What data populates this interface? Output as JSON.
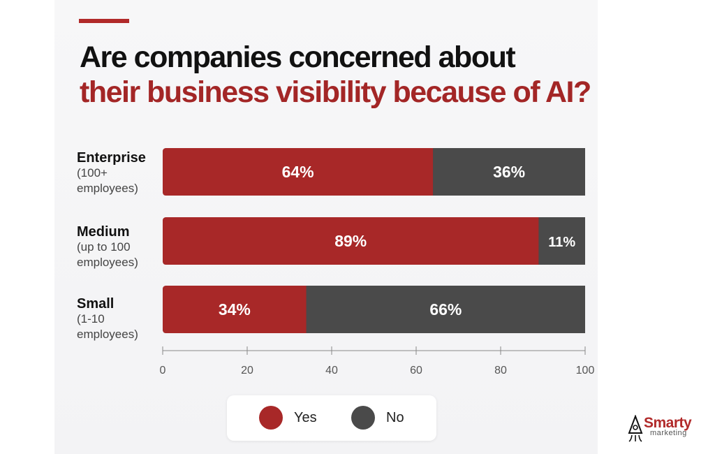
{
  "title": {
    "line1": "Are companies concerned about",
    "line2": "their business visibility because of AI?"
  },
  "colors": {
    "accent": "#b12a2a",
    "yes": "#a82828",
    "no": "#4a4a4a",
    "title_red": "#a32626"
  },
  "categories_info": [
    {
      "name": "Enterprise",
      "sub": "(100+\nemployees)"
    },
    {
      "name": "Medium",
      "sub": "(up to 100\nemployees)"
    },
    {
      "name": "Small",
      "sub": "(1-10\nemployees)"
    }
  ],
  "legend": {
    "yes": "Yes",
    "no": "No"
  },
  "logo": {
    "name": "Smarty",
    "tag": "marketing",
    "icon": "rocket-icon"
  },
  "chart_data": {
    "type": "bar",
    "orientation": "horizontal",
    "stacked": true,
    "categories": [
      "Enterprise",
      "Medium",
      "Small"
    ],
    "series": [
      {
        "name": "Yes",
        "values": [
          64,
          89,
          34
        ],
        "labels": [
          "64%",
          "89%",
          "34%"
        ],
        "color": "#a82828"
      },
      {
        "name": "No",
        "values": [
          36,
          11,
          66
        ],
        "labels": [
          "36%",
          "11%",
          "66%"
        ],
        "color": "#4a4a4a"
      }
    ],
    "xlim": [
      0,
      100
    ],
    "xticks": [
      0,
      20,
      40,
      60,
      80,
      100
    ],
    "grid": false,
    "legend_position": "bottom-center"
  }
}
